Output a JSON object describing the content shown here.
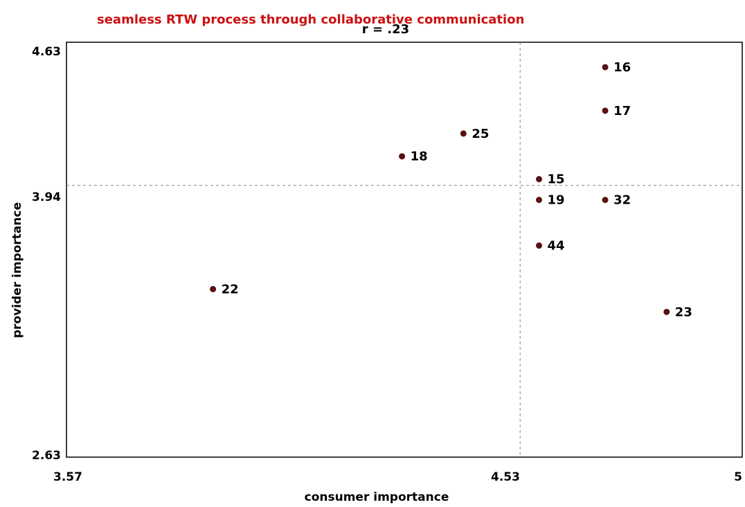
{
  "chart_data": {
    "type": "scatter",
    "title": "seamless RTW process through collaborative communication",
    "subtitle": "r = .23",
    "xlabel": "consumer importance",
    "ylabel": "provider importance",
    "xlim": [
      3.57,
      5
    ],
    "ylim": [
      2.63,
      4.63
    ],
    "x_ticks": [
      "3.57",
      "4.53",
      "5"
    ],
    "y_ticks": [
      "4.63",
      "3.94",
      "2.63"
    ],
    "reference_lines": {
      "x": 4.53,
      "y": 3.94
    },
    "grid": false,
    "colors": {
      "title": "#cc1111",
      "points": "#5a1010",
      "frame": "#000000",
      "reference": "#888888"
    },
    "points": [
      {
        "label": "16",
        "x": 4.71,
        "y": 4.51
      },
      {
        "label": "17",
        "x": 4.71,
        "y": 4.3
      },
      {
        "label": "25",
        "x": 4.41,
        "y": 4.19
      },
      {
        "label": "18",
        "x": 4.28,
        "y": 4.08
      },
      {
        "label": "15",
        "x": 4.57,
        "y": 3.97
      },
      {
        "label": "19",
        "x": 4.57,
        "y": 3.87
      },
      {
        "label": "32",
        "x": 4.71,
        "y": 3.87
      },
      {
        "label": "44",
        "x": 4.57,
        "y": 3.65
      },
      {
        "label": "22",
        "x": 3.88,
        "y": 3.44
      },
      {
        "label": "23",
        "x": 4.84,
        "y": 3.33
      }
    ]
  }
}
